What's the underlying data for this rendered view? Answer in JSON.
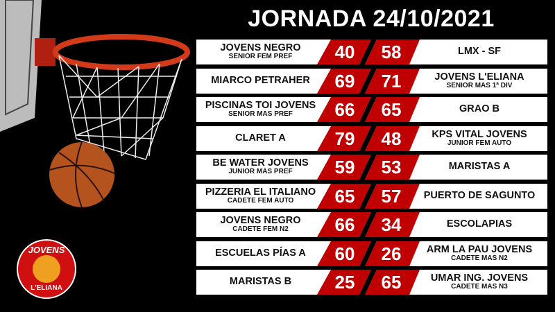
{
  "title": "JORNADA 24/10/2021",
  "colors": {
    "score_bg": "#c00000",
    "background": "#000000",
    "card": "#ffffff"
  },
  "logo": {
    "text_top": "JOVENS",
    "text_bottom": "L'ELIANA"
  },
  "matches": [
    {
      "home": "JOVENS NEGRO",
      "home_cat": "SENIOR FEM PREF",
      "home_score": "40",
      "away_score": "58",
      "away": "LMX - SF",
      "away_cat": ""
    },
    {
      "home": "MIARCO PETRAHER",
      "home_cat": "",
      "home_score": "69",
      "away_score": "71",
      "away": "JOVENS L'ELIANA",
      "away_cat": "SENIOR  MAS 1ª DIV"
    },
    {
      "home": "PISCINAS TOI JOVENS",
      "home_cat": "SENIOR MAS PREF",
      "home_score": "66",
      "away_score": "65",
      "away": "GRAO B",
      "away_cat": ""
    },
    {
      "home": "CLARET A",
      "home_cat": "",
      "home_score": "79",
      "away_score": "48",
      "away": "KPS VITAL JOVENS",
      "away_cat": "JUNIOR FEM AUTO"
    },
    {
      "home": "BE WATER JOVENS",
      "home_cat": "JUNIOR MAS PREF",
      "home_score": "59",
      "away_score": "53",
      "away": "MARISTAS A",
      "away_cat": ""
    },
    {
      "home": "PIZZERIA EL ITALIANO",
      "home_cat": "CADETE FEM AUTO",
      "home_score": "65",
      "away_score": "57",
      "away": "PUERTO DE SAGUNTO",
      "away_cat": ""
    },
    {
      "home": "JOVENS NEGRO",
      "home_cat": "CADETE FEM N2",
      "home_score": "66",
      "away_score": "34",
      "away": "ESCOLAPIAS",
      "away_cat": ""
    },
    {
      "home": "ESCUELAS PÍAS A",
      "home_cat": "",
      "home_score": "60",
      "away_score": "26",
      "away": "ARM LA PAU JOVENS",
      "away_cat": "CADETE MAS N2"
    },
    {
      "home": "MARISTAS B",
      "home_cat": "",
      "home_score": "25",
      "away_score": "65",
      "away": "UMAR ING. JOVENS",
      "away_cat": "CADETE MAS N3"
    }
  ]
}
